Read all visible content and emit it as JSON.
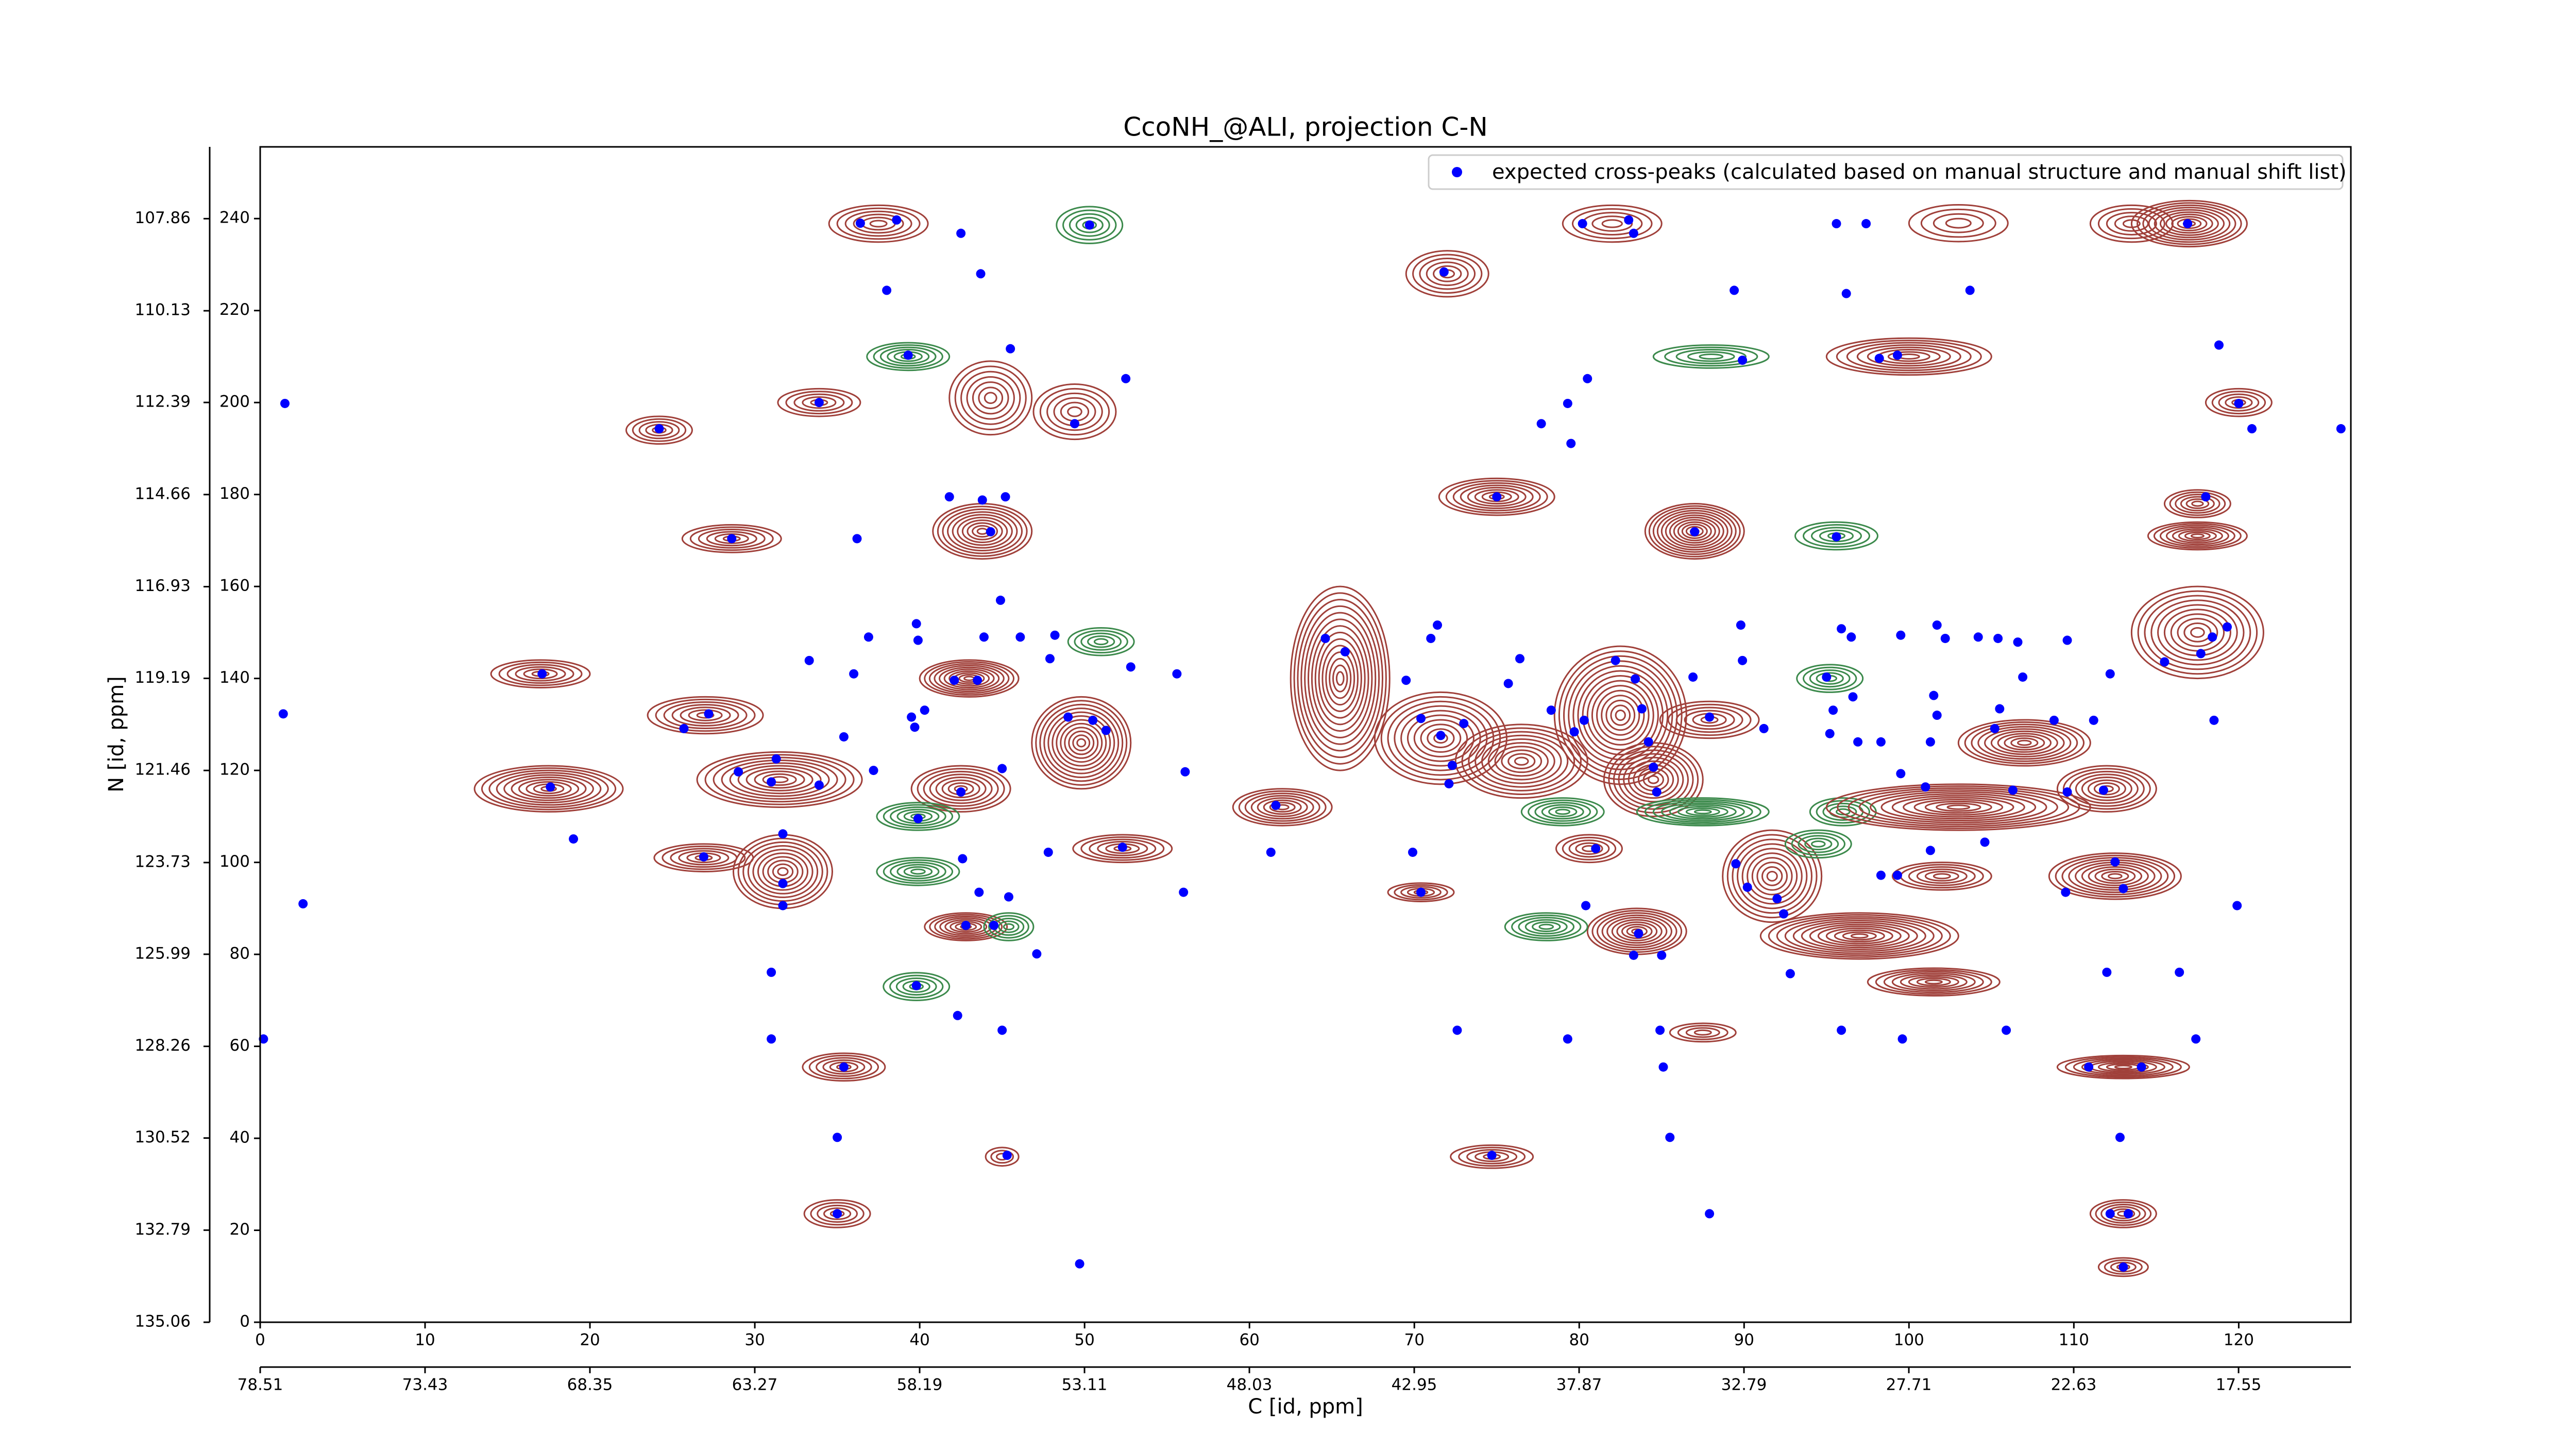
{
  "chart_data": [
    {
      "type": "scatter",
      "title": "CcoNH_@ALI, projection C-N",
      "x_label": "C [id, ppm]",
      "y_label": "N [id, ppm]",
      "xlim": [
        0,
        126.8
      ],
      "xticks": [
        0,
        10,
        20,
        30,
        40,
        50,
        60,
        70,
        80,
        90,
        100,
        110,
        120
      ],
      "ylim": [
        0,
        255.6
      ],
      "yticks": [
        0,
        20,
        40,
        60,
        80,
        100,
        120,
        140,
        160,
        180,
        200,
        220,
        240
      ],
      "x2lim": [
        78.51,
        14.09
      ],
      "x2ticks": [
        78.51,
        73.43,
        68.35,
        63.27,
        58.19,
        53.11,
        48.03,
        42.95,
        37.87,
        32.79,
        27.71,
        22.63,
        17.55
      ],
      "y2lim": [
        135.06,
        106.09
      ],
      "y2ticks": [
        107.86,
        110.13,
        112.39,
        114.66,
        116.93,
        119.19,
        121.46,
        123.73,
        125.99,
        128.26,
        130.52,
        132.79,
        135.06
      ],
      "legend": "upper right",
      "series": [
        {
          "name": "expected cross-peaks (calculated based on manual structure and manual shift list)",
          "color": "#0000ff",
          "x": [
            36.4,
            38.6,
            42.5,
            50.3,
            38.0,
            43.7,
            71.8,
            1.5,
            24.2,
            33.9,
            45.5,
            39.3,
            52.5,
            49.4,
            41.8,
            43.8,
            45.2,
            44.3,
            28.6,
            36.2,
            80.2,
            83.0,
            83.3,
            89.4,
            96.2,
            95.6,
            97.4,
            103.7,
            116.9,
            118.8,
            120.0,
            120.8,
            126.2,
            98.2,
            99.3,
            80.5,
            79.3,
            77.7,
            79.5,
            75.0,
            87.0,
            118.0,
            89.9,
            95.6,
            1.4,
            17.1,
            27.2,
            25.7,
            17.6,
            29.0,
            31.3,
            31.0,
            33.9,
            31.7,
            31.7,
            31.7,
            26.9,
            19.0,
            2.6,
            36.9,
            39.8,
            39.9,
            36.0,
            33.3,
            35.4,
            37.2,
            39.7,
            40.3,
            39.5,
            42.1,
            43.5,
            44.9,
            43.9,
            46.1,
            47.9,
            48.2,
            52.8,
            55.6,
            49.0,
            50.5,
            51.3,
            42.5,
            56.1,
            39.9,
            42.6,
            47.8,
            52.3,
            45.0,
            56.0,
            43.6,
            45.4,
            44.5,
            42.8,
            47.1,
            31.0,
            39.8,
            42.3,
            45.0,
            31.0,
            35.4,
            35.0,
            45.3,
            35.0,
            49.7,
            0.2,
            64.6,
            65.8,
            71.4,
            71.0,
            69.5,
            70.4,
            71.6,
            73.0,
            72.3,
            69.9,
            70.4,
            72.1,
            75.7,
            76.4,
            78.3,
            79.7,
            80.3,
            82.2,
            83.4,
            83.8,
            84.2,
            84.5,
            84.7,
            81.0,
            80.4,
            83.6,
            83.3,
            85.0,
            86.9,
            89.8,
            89.9,
            91.2,
            87.9,
            89.5,
            90.2,
            92.0,
            92.4,
            92.8,
            95.9,
            96.5,
            99.5,
            101.7,
            102.2,
            104.2,
            105.4,
            106.6,
            109.6,
            95.0,
            95.4,
            96.6,
            96.9,
            95.2,
            98.3,
            101.5,
            101.7,
            101.3,
            105.2,
            105.5,
            106.9,
            108.8,
            111.2,
            112.2,
            115.5,
            117.7,
            119.3,
            118.4,
            118.5,
            99.5,
            101.0,
            106.3,
            109.6,
            111.8,
            98.3,
            99.3,
            101.3,
            104.6,
            109.5,
            112.5,
            113.0,
            119.9,
            112.0,
            116.4,
            95.9,
            99.6,
            105.9,
            110.9,
            114.1,
            112.8,
            117.4,
            112.2,
            113.3,
            113.0,
            85.1,
            84.9,
            85.5,
            87.9,
            74.7,
            79.3,
            72.6,
            61.6,
            61.3
          ],
          "values": [
            239,
            239.7,
            236.8,
            238.6,
            224.4,
            228,
            228.4,
            199.8,
            194.3,
            200,
            211.7,
            210.3,
            205.2,
            195.4,
            179.5,
            178.8,
            179.5,
            171.9,
            170.4,
            170.4,
            238.9,
            239.7,
            236.8,
            224.4,
            223.7,
            238.9,
            238.9,
            224.4,
            238.9,
            212.5,
            199.8,
            194.3,
            194.3,
            209.6,
            210.3,
            205.2,
            199.8,
            195.4,
            191.1,
            179.5,
            171.9,
            179.5,
            209.2,
            170.8,
            132.3,
            141,
            132.3,
            129.1,
            116.4,
            119.7,
            122.5,
            117.5,
            116.8,
            106.2,
            95.4,
            90.6,
            101.2,
            105.1,
            91,
            149,
            151.9,
            148.3,
            141,
            143.9,
            127.3,
            120,
            129.4,
            133.1,
            131.6,
            139.6,
            139.6,
            157,
            149,
            149,
            144.3,
            149.4,
            142.5,
            141,
            131.6,
            130.9,
            128.7,
            115.3,
            119.7,
            109.5,
            100.8,
            102.2,
            103.3,
            120.4,
            93.5,
            93.5,
            92.5,
            86.3,
            86.3,
            80.1,
            76.1,
            73.2,
            66.7,
            63.5,
            61.6,
            55.5,
            40.2,
            36.3,
            23.6,
            12.7,
            61.6,
            148.7,
            145.8,
            151.6,
            148.7,
            139.6,
            131.3,
            127.6,
            130.2,
            121.1,
            102.2,
            93.5,
            117.1,
            138.9,
            144.3,
            133.1,
            128.4,
            130.9,
            143.9,
            139.9,
            133.4,
            126.2,
            120.7,
            115.3,
            103,
            90.6,
            84.5,
            79.8,
            79.8,
            140.3,
            151.6,
            143.9,
            129.1,
            131.6,
            99.7,
            94.6,
            92.1,
            88.8,
            75.8,
            150.8,
            149,
            149.4,
            151.6,
            148.7,
            149,
            148.7,
            147.9,
            148.3,
            140.3,
            133.1,
            136,
            126.2,
            128,
            126.2,
            136.3,
            132,
            126.2,
            129.1,
            133.4,
            140.3,
            130.9,
            130.9,
            141,
            143.6,
            145.4,
            151.2,
            149,
            130.9,
            119.3,
            116.4,
            115.7,
            115.3,
            115.7,
            97.2,
            97.2,
            102.6,
            104.4,
            93.5,
            100.1,
            94.3,
            90.6,
            76.1,
            76.1,
            63.5,
            61.6,
            63.5,
            55.5,
            55.5,
            40.2,
            61.6,
            23.6,
            23.6,
            12,
            55.5,
            63.5,
            40.2,
            23.6,
            36.3,
            61.6,
            63.5,
            112.4,
            102.2
          ]
        }
      ]
    },
    {
      "type": "contour",
      "positive_color": "#a0403a",
      "negative_color": "#3c8a4c",
      "x": [
        37.5,
        50.3,
        117,
        103,
        113.5,
        82,
        72,
        24.2,
        33.9,
        44.3,
        49.4,
        43.8,
        28.6,
        75,
        87,
        95.6,
        39.3,
        88,
        100,
        120,
        117.5,
        117.5,
        17,
        27,
        31.5,
        17.5,
        31.7,
        26.9,
        43,
        42.5,
        39.9,
        39.9,
        49.8,
        52.3,
        51,
        39.8,
        42.8,
        45.4,
        35.4,
        45,
        35,
        62,
        65.5,
        71.6,
        76.5,
        82.5,
        84.5,
        87.9,
        80.6,
        70.4,
        83.5,
        91.7,
        97,
        87.5,
        79,
        78,
        95.2,
        96,
        103,
        107,
        117.5,
        112,
        112.5,
        101.5,
        113,
        113,
        113,
        74.7,
        87.5,
        102,
        94.5
      ],
      "values": [
        238.9,
        238.6,
        238.9,
        239,
        238.9,
        238.9,
        228,
        194,
        200,
        201,
        198,
        172,
        170.4,
        179.5,
        172,
        171,
        210,
        210,
        210,
        200,
        178,
        171,
        141,
        132,
        118,
        116,
        98,
        101,
        140,
        116,
        110,
        98,
        126,
        103,
        148,
        73,
        86,
        86,
        55.5,
        36,
        23.6,
        112,
        140,
        127,
        122,
        132,
        118,
        131,
        103,
        93.5,
        85,
        97,
        84,
        111,
        111,
        86,
        140,
        111,
        112,
        126,
        150,
        116,
        97,
        74,
        55.5,
        23.6,
        12,
        36,
        63,
        97,
        104
      ],
      "x_width": [
        3,
        2,
        3.5,
        3,
        2.5,
        3,
        2.5,
        2,
        2.5,
        2.5,
        2.5,
        3,
        3,
        3.5,
        3,
        2.5,
        2.5,
        3.5,
        5,
        2,
        2,
        3,
        3,
        3.5,
        5,
        4.5,
        3,
        3,
        3,
        3,
        2.5,
        2.5,
        3,
        3,
        2,
        2,
        2.5,
        1.5,
        2.5,
        1,
        2,
        3,
        3,
        4,
        4,
        4,
        3,
        3,
        2,
        2,
        3,
        3,
        6,
        4,
        2.5,
        2.5,
        2,
        2,
        8,
        4,
        4,
        3,
        4,
        4,
        4,
        2,
        1.5,
        2.5,
        2,
        3,
        2
      ],
      "y_width": [
        4,
        4,
        5,
        4,
        4,
        4,
        5,
        3,
        3,
        8,
        6,
        6,
        3,
        4,
        6,
        3,
        3,
        2.5,
        4,
        3,
        3,
        3,
        3,
        4,
        6,
        5,
        8,
        3,
        4,
        5,
        3,
        3,
        10,
        3,
        3,
        3,
        3,
        3,
        3,
        2,
        3,
        4,
        20,
        10,
        8,
        15,
        8,
        4,
        3,
        2,
        5,
        10,
        5,
        3,
        3,
        3,
        3,
        3,
        5,
        5,
        10,
        5,
        5,
        3,
        2.5,
        3,
        2,
        2.5,
        2,
        3,
        3
      ],
      "levels": [
        6,
        5,
        10,
        4,
        5,
        5,
        6,
        5,
        5,
        7,
        6,
        10,
        6,
        8,
        12,
        5,
        6,
        5,
        8,
        5,
        6,
        8,
        6,
        7,
        10,
        10,
        10,
        6,
        10,
        8,
        6,
        6,
        12,
        6,
        5,
        5,
        8,
        5,
        6,
        3,
        5,
        8,
        14,
        10,
        10,
        14,
        10,
        6,
        5,
        5,
        10,
        10,
        12,
        8,
        6,
        6,
        5,
        5,
        12,
        10,
        10,
        8,
        10,
        8,
        8,
        6,
        4,
        5,
        4,
        6,
        5
      ],
      "sign": [
        1,
        -1,
        1,
        1,
        1,
        1,
        1,
        1,
        1,
        1,
        1,
        1,
        1,
        1,
        1,
        -1,
        -1,
        -1,
        1,
        1,
        1,
        1,
        1,
        1,
        1,
        1,
        1,
        1,
        1,
        1,
        -1,
        -1,
        1,
        1,
        -1,
        -1,
        1,
        -1,
        1,
        1,
        1,
        1,
        1,
        1,
        1,
        1,
        1,
        1,
        1,
        1,
        1,
        1,
        1,
        -1,
        -1,
        -1,
        -1,
        -1,
        1,
        1,
        1,
        1,
        1,
        1,
        1,
        1,
        1,
        1,
        1,
        1,
        -1
      ]
    }
  ]
}
